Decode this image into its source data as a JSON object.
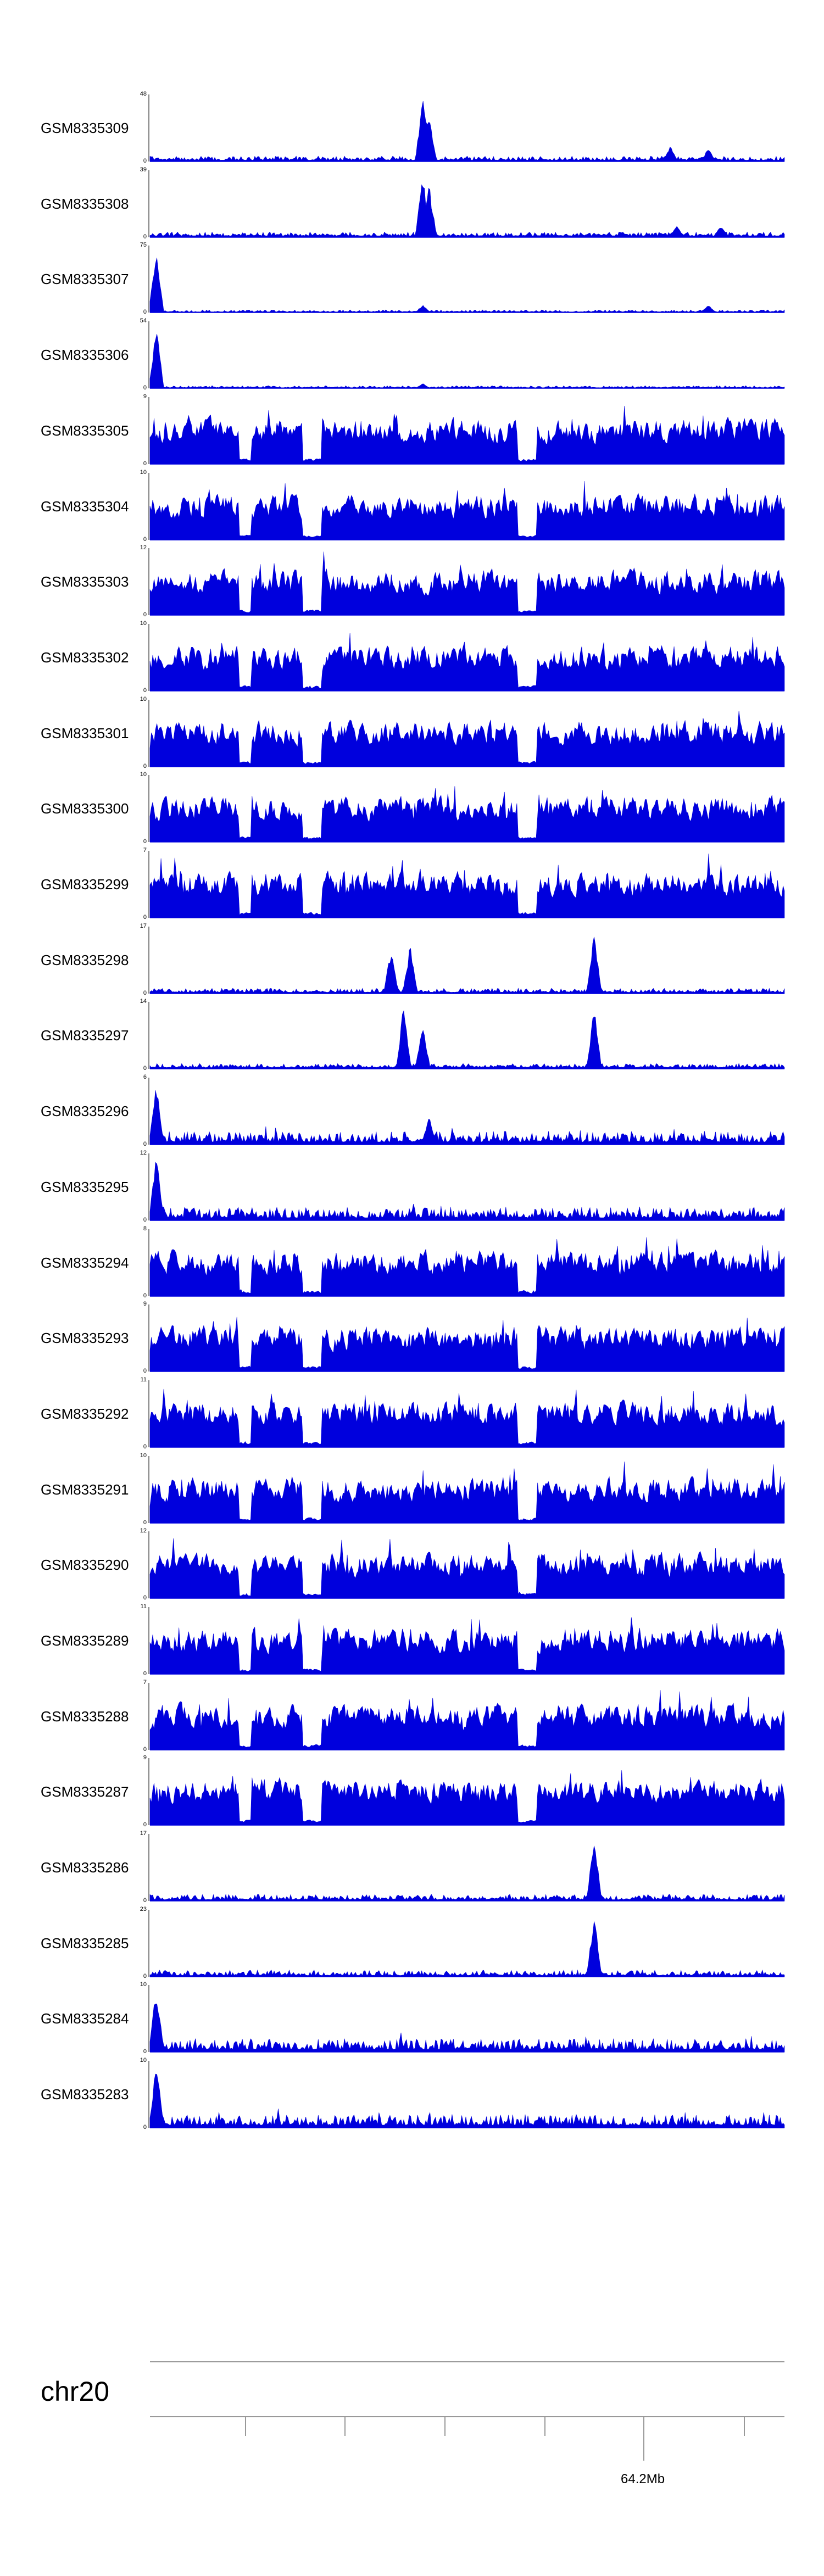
{
  "chart_data": {
    "type": "area",
    "series_color": "#0000dd",
    "chromosome": "chr20",
    "axis_tick_label": "64.2Mb",
    "tracks": [
      {
        "name": "GSM8335309",
        "ymax": 48,
        "ymin": 0,
        "profile": "peaky",
        "peaks": [
          [
            0.43,
            1.0
          ],
          [
            0.44,
            0.75
          ],
          [
            0.82,
            0.25
          ],
          [
            0.88,
            0.2
          ]
        ]
      },
      {
        "name": "GSM8335308",
        "ymax": 39,
        "ymin": 0,
        "profile": "peaky",
        "peaks": [
          [
            0.43,
            1.0
          ],
          [
            0.44,
            0.8
          ],
          [
            0.83,
            0.2
          ],
          [
            0.9,
            0.18
          ]
        ]
      },
      {
        "name": "GSM8335307",
        "ymax": 75,
        "ymin": 0,
        "profile": "sparse",
        "peaks": [
          [
            0.01,
            1.0
          ],
          [
            0.43,
            0.12
          ],
          [
            0.88,
            0.12
          ]
        ]
      },
      {
        "name": "GSM8335306",
        "ymax": 54,
        "ymin": 0,
        "profile": "sparse",
        "peaks": [
          [
            0.01,
            1.0
          ],
          [
            0.43,
            0.08
          ]
        ]
      },
      {
        "name": "GSM8335305",
        "ymax": 9,
        "ymin": 0,
        "profile": "dense",
        "peaks": []
      },
      {
        "name": "GSM8335304",
        "ymax": 10,
        "ymin": 0,
        "profile": "dense",
        "peaks": []
      },
      {
        "name": "GSM8335303",
        "ymax": 12,
        "ymin": 0,
        "profile": "dense",
        "peaks": []
      },
      {
        "name": "GSM8335302",
        "ymax": 10,
        "ymin": 0,
        "profile": "dense",
        "peaks": []
      },
      {
        "name": "GSM8335301",
        "ymax": 10,
        "ymin": 0,
        "profile": "dense",
        "peaks": []
      },
      {
        "name": "GSM8335300",
        "ymax": 10,
        "ymin": 0,
        "profile": "dense",
        "peaks": []
      },
      {
        "name": "GSM8335299",
        "ymax": 7,
        "ymin": 0,
        "profile": "dense",
        "peaks": []
      },
      {
        "name": "GSM8335298",
        "ymax": 17,
        "ymin": 0,
        "profile": "peaky",
        "peaks": [
          [
            0.38,
            0.7
          ],
          [
            0.41,
            0.75
          ],
          [
            0.7,
            1.0
          ]
        ]
      },
      {
        "name": "GSM8335297",
        "ymax": 14,
        "ymin": 0,
        "profile": "peaky",
        "peaks": [
          [
            0.4,
            1.0
          ],
          [
            0.43,
            0.7
          ],
          [
            0.7,
            0.95
          ]
        ]
      },
      {
        "name": "GSM8335296",
        "ymax": 6,
        "ymin": 0,
        "profile": "lowmed",
        "peaks": [
          [
            0.01,
            1.0
          ],
          [
            0.44,
            0.45
          ]
        ]
      },
      {
        "name": "GSM8335295",
        "ymax": 12,
        "ymin": 0,
        "profile": "lowmed",
        "peaks": [
          [
            0.01,
            1.0
          ]
        ]
      },
      {
        "name": "GSM8335294",
        "ymax": 8,
        "ymin": 0,
        "profile": "dense",
        "peaks": []
      },
      {
        "name": "GSM8335293",
        "ymax": 9,
        "ymin": 0,
        "profile": "dense",
        "peaks": []
      },
      {
        "name": "GSM8335292",
        "ymax": 11,
        "ymin": 0,
        "profile": "dense",
        "peaks": []
      },
      {
        "name": "GSM8335291",
        "ymax": 10,
        "ymin": 0,
        "profile": "dense",
        "peaks": []
      },
      {
        "name": "GSM8335290",
        "ymax": 12,
        "ymin": 0,
        "profile": "dense",
        "peaks": []
      },
      {
        "name": "GSM8335289",
        "ymax": 11,
        "ymin": 0,
        "profile": "dense",
        "peaks": []
      },
      {
        "name": "GSM8335288",
        "ymax": 7,
        "ymin": 0,
        "profile": "dense",
        "peaks": []
      },
      {
        "name": "GSM8335287",
        "ymax": 9,
        "ymin": 0,
        "profile": "dense",
        "peaks": []
      },
      {
        "name": "GSM8335286",
        "ymax": 17,
        "ymin": 0,
        "profile": "low",
        "peaks": [
          [
            0.7,
            1.0
          ]
        ]
      },
      {
        "name": "GSM8335285",
        "ymax": 23,
        "ymin": 0,
        "profile": "low",
        "peaks": [
          [
            0.7,
            1.0
          ]
        ]
      },
      {
        "name": "GSM8335284",
        "ymax": 10,
        "ymin": 0,
        "profile": "lowmed",
        "peaks": [
          [
            0.01,
            1.0
          ]
        ]
      },
      {
        "name": "GSM8335283",
        "ymax": 10,
        "ymin": 0,
        "profile": "lowmed",
        "peaks": [
          [
            0.01,
            1.0
          ]
        ]
      }
    ]
  }
}
